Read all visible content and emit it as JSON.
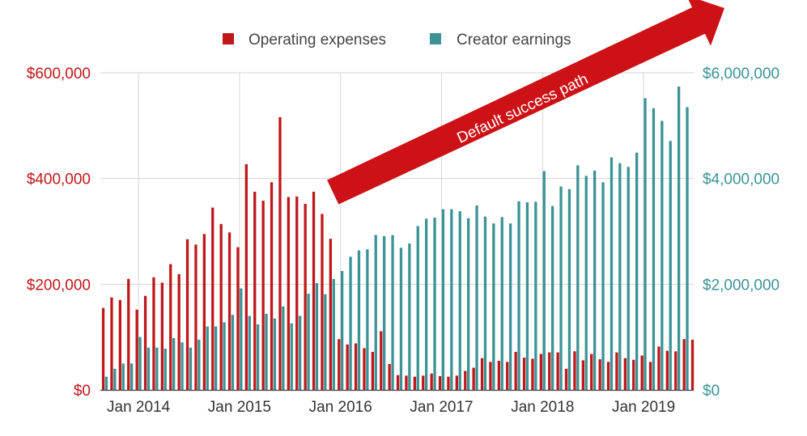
{
  "chart_data": {
    "type": "bar",
    "title": "",
    "xlabel": "",
    "ylabel": "",
    "legend_position": "top-center",
    "grid": true,
    "colors": {
      "expenses": "#c0171b",
      "earnings": "#3b9396",
      "arrow": "#cc1216",
      "grid": "#d6d6d6",
      "axis": "#444444",
      "tick_text": "#333333"
    },
    "x_start": "2013-09",
    "x_ticks": [
      "Jan 2014",
      "Jan 2015",
      "Jan 2016",
      "Jan 2017",
      "Jan 2018",
      "Jan 2019"
    ],
    "left_axis": {
      "ylim": [
        0,
        600000
      ],
      "ticks": [
        "$0",
        "$200,000",
        "$400,000",
        "$600,000"
      ]
    },
    "right_axis": {
      "ylim": [
        0,
        6000000
      ],
      "ticks": [
        "$0",
        "$2,000,000",
        "$4,000,000",
        "$6,000,000"
      ]
    },
    "annotation": {
      "text": "Default success path"
    },
    "series": [
      {
        "name": "Operating expenses",
        "axis": "left",
        "values": [
          155000,
          175000,
          170000,
          210000,
          152000,
          178000,
          213000,
          203000,
          238000,
          219000,
          285000,
          275000,
          295000,
          345000,
          314000,
          298000,
          270000,
          427000,
          375000,
          358000,
          393000,
          516000,
          365000,
          366000,
          352000,
          375000,
          333000,
          286000,
          96000,
          86000,
          88000,
          79000,
          72000,
          111000,
          49000,
          28000,
          27000,
          25000,
          27000,
          31000,
          26000,
          25000,
          27000,
          36000,
          42000,
          60000,
          53000,
          55000,
          53000,
          72000,
          61000,
          59000,
          68000,
          71000,
          71000,
          40000,
          73000,
          56000,
          68000,
          58000,
          53000,
          71000,
          60000,
          57000,
          65000,
          53000,
          82000,
          74000,
          73000,
          96000,
          95000
        ]
      },
      {
        "name": "Creator earnings",
        "axis": "right",
        "values": [
          250000,
          400000,
          500000,
          500000,
          1000000,
          800000,
          800000,
          780000,
          980000,
          900000,
          800000,
          950000,
          1200000,
          1200000,
          1280000,
          1420000,
          1920000,
          1400000,
          1240000,
          1440000,
          1350000,
          1580000,
          1260000,
          1400000,
          1820000,
          2020000,
          1810000,
          2100000,
          2250000,
          2520000,
          2640000,
          2660000,
          2930000,
          2910000,
          2930000,
          2690000,
          2770000,
          3100000,
          3240000,
          3260000,
          3420000,
          3420000,
          3380000,
          3250000,
          3490000,
          3280000,
          3150000,
          3270000,
          3150000,
          3570000,
          3550000,
          3560000,
          4140000,
          3480000,
          3850000,
          3800000,
          4250000,
          4050000,
          4150000,
          3930000,
          4400000,
          4290000,
          4220000,
          4490000,
          5520000,
          5330000,
          5090000,
          4710000,
          5740000,
          5350000,
          0
        ]
      }
    ]
  }
}
